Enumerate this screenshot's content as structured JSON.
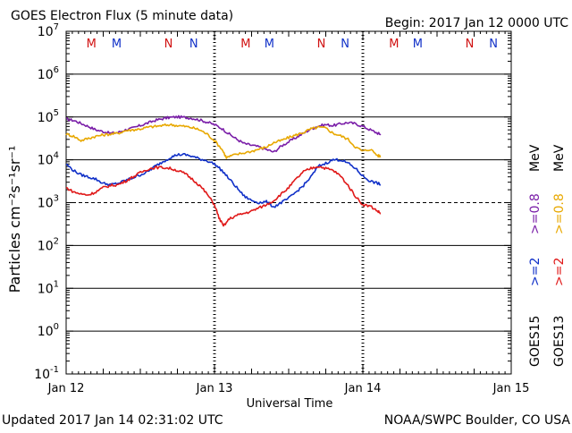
{
  "chart_data": {
    "type": "line",
    "title": "GOES Electron Flux (5 minute data)",
    "begin_label": "Begin: 2017 Jan 12 0000 UTC",
    "xlabel": "Universal Time",
    "ylabel": "Particles cm⁻²s⁻¹sr⁻¹",
    "x_unit": "days since 2017 Jan 12 0000 UTC",
    "xlim": [
      0,
      3
    ],
    "ylim_log10": [
      -1,
      7
    ],
    "y_scale": "log",
    "y_ticks": [
      {
        "base": "10",
        "exp": "-1",
        "value": -1
      },
      {
        "base": "10",
        "exp": "0",
        "value": 0
      },
      {
        "base": "10",
        "exp": "1",
        "value": 1
      },
      {
        "base": "10",
        "exp": "2",
        "value": 2
      },
      {
        "base": "10",
        "exp": "3",
        "value": 3
      },
      {
        "base": "10",
        "exp": "4",
        "value": 4
      },
      {
        "base": "10",
        "exp": "5",
        "value": 5
      },
      {
        "base": "10",
        "exp": "6",
        "value": 6
      },
      {
        "base": "10",
        "exp": "7",
        "value": 7
      }
    ],
    "x_ticks": [
      {
        "label": "Jan 12",
        "value": 0
      },
      {
        "label": "Jan 13",
        "value": 1
      },
      {
        "label": "Jan 14",
        "value": 2
      },
      {
        "label": "Jan 15",
        "value": 3
      }
    ],
    "solid_gridlines_log10": [
      0,
      1,
      2,
      4,
      5,
      6
    ],
    "threshold_log10": 3,
    "day_boundaries": [
      1,
      2
    ],
    "magnetopause_markers": [
      {
        "letter": "M",
        "day": 0.17,
        "color": "#d01010"
      },
      {
        "letter": "M",
        "day": 0.34,
        "color": "#1030c8"
      },
      {
        "letter": "N",
        "day": 0.69,
        "color": "#d01010"
      },
      {
        "letter": "N",
        "day": 0.86,
        "color": "#1030c8"
      },
      {
        "letter": "M",
        "day": 1.21,
        "color": "#d01010"
      },
      {
        "letter": "M",
        "day": 1.37,
        "color": "#1030c8"
      },
      {
        "letter": "N",
        "day": 1.72,
        "color": "#d01010"
      },
      {
        "letter": "N",
        "day": 1.88,
        "color": "#1030c8"
      },
      {
        "letter": "M",
        "day": 2.21,
        "color": "#d01010"
      },
      {
        "letter": "M",
        "day": 2.37,
        "color": "#1030c8"
      },
      {
        "letter": "N",
        "day": 2.72,
        "color": "#d01010"
      },
      {
        "letter": "N",
        "day": 2.88,
        "color": "#1030c8"
      }
    ],
    "legend": {
      "goes15_label": "GOES15",
      "goes13_label": "GOES13",
      "ge2_label": ">=2",
      "ge08_label": ">=0.8",
      "mev_label": "MeV"
    },
    "series": [
      {
        "name": "GOES15 >=0.8 MeV",
        "color": "#7a1ea8",
        "points_day_log10": [
          [
            0.0,
            4.95
          ],
          [
            0.05,
            4.92
          ],
          [
            0.1,
            4.85
          ],
          [
            0.15,
            4.78
          ],
          [
            0.2,
            4.7
          ],
          [
            0.25,
            4.66
          ],
          [
            0.3,
            4.62
          ],
          [
            0.35,
            4.64
          ],
          [
            0.4,
            4.7
          ],
          [
            0.45,
            4.74
          ],
          [
            0.5,
            4.8
          ],
          [
            0.55,
            4.86
          ],
          [
            0.6,
            4.92
          ],
          [
            0.65,
            4.96
          ],
          [
            0.7,
            4.99
          ],
          [
            0.75,
            5.0
          ],
          [
            0.8,
            4.99
          ],
          [
            0.85,
            4.97
          ],
          [
            0.9,
            4.93
          ],
          [
            0.95,
            4.88
          ],
          [
            1.0,
            4.82
          ],
          [
            1.05,
            4.73
          ],
          [
            1.1,
            4.6
          ],
          [
            1.15,
            4.48
          ],
          [
            1.2,
            4.38
          ],
          [
            1.25,
            4.34
          ],
          [
            1.3,
            4.3
          ],
          [
            1.35,
            4.24
          ],
          [
            1.4,
            4.18
          ],
          [
            1.45,
            4.32
          ],
          [
            1.5,
            4.42
          ],
          [
            1.55,
            4.52
          ],
          [
            1.6,
            4.62
          ],
          [
            1.65,
            4.72
          ],
          [
            1.7,
            4.79
          ],
          [
            1.75,
            4.82
          ],
          [
            1.8,
            4.8
          ],
          [
            1.85,
            4.84
          ],
          [
            1.9,
            4.87
          ],
          [
            1.95,
            4.84
          ],
          [
            2.0,
            4.78
          ],
          [
            2.05,
            4.7
          ],
          [
            2.1,
            4.62
          ],
          [
            2.12,
            4.6
          ]
        ]
      },
      {
        "name": "GOES13 >=0.8 MeV",
        "color": "#e8a800",
        "points_day_log10": [
          [
            0.0,
            4.6
          ],
          [
            0.05,
            4.55
          ],
          [
            0.1,
            4.45
          ],
          [
            0.15,
            4.5
          ],
          [
            0.2,
            4.55
          ],
          [
            0.25,
            4.58
          ],
          [
            0.3,
            4.6
          ],
          [
            0.35,
            4.62
          ],
          [
            0.4,
            4.68
          ],
          [
            0.45,
            4.7
          ],
          [
            0.5,
            4.72
          ],
          [
            0.55,
            4.76
          ],
          [
            0.6,
            4.78
          ],
          [
            0.65,
            4.8
          ],
          [
            0.7,
            4.82
          ],
          [
            0.75,
            4.8
          ],
          [
            0.8,
            4.78
          ],
          [
            0.85,
            4.75
          ],
          [
            0.9,
            4.7
          ],
          [
            0.95,
            4.6
          ],
          [
            1.0,
            4.45
          ],
          [
            1.05,
            4.25
          ],
          [
            1.08,
            4.05
          ],
          [
            1.12,
            4.1
          ],
          [
            1.18,
            4.15
          ],
          [
            1.25,
            4.2
          ],
          [
            1.3,
            4.25
          ],
          [
            1.35,
            4.3
          ],
          [
            1.4,
            4.4
          ],
          [
            1.45,
            4.45
          ],
          [
            1.5,
            4.52
          ],
          [
            1.55,
            4.58
          ],
          [
            1.6,
            4.64
          ],
          [
            1.65,
            4.72
          ],
          [
            1.7,
            4.76
          ],
          [
            1.75,
            4.74
          ],
          [
            1.8,
            4.62
          ],
          [
            1.85,
            4.56
          ],
          [
            1.9,
            4.48
          ],
          [
            1.95,
            4.3
          ],
          [
            2.0,
            4.2
          ],
          [
            2.05,
            4.25
          ],
          [
            2.1,
            4.1
          ],
          [
            2.12,
            4.08
          ]
        ]
      },
      {
        "name": "GOES15 >=2 MeV",
        "color": "#1030c8",
        "points_day_log10": [
          [
            0.0,
            3.9
          ],
          [
            0.05,
            3.75
          ],
          [
            0.1,
            3.65
          ],
          [
            0.15,
            3.6
          ],
          [
            0.2,
            3.55
          ],
          [
            0.25,
            3.45
          ],
          [
            0.3,
            3.42
          ],
          [
            0.35,
            3.45
          ],
          [
            0.4,
            3.52
          ],
          [
            0.45,
            3.58
          ],
          [
            0.5,
            3.65
          ],
          [
            0.55,
            3.72
          ],
          [
            0.6,
            3.85
          ],
          [
            0.65,
            3.95
          ],
          [
            0.7,
            4.05
          ],
          [
            0.75,
            4.12
          ],
          [
            0.8,
            4.12
          ],
          [
            0.85,
            4.08
          ],
          [
            0.9,
            4.02
          ],
          [
            0.95,
            3.98
          ],
          [
            1.0,
            3.9
          ],
          [
            1.05,
            3.75
          ],
          [
            1.1,
            3.55
          ],
          [
            1.15,
            3.35
          ],
          [
            1.2,
            3.15
          ],
          [
            1.25,
            3.05
          ],
          [
            1.3,
            3.0
          ],
          [
            1.35,
            3.02
          ],
          [
            1.4,
            2.9
          ],
          [
            1.45,
            3.0
          ],
          [
            1.5,
            3.1
          ],
          [
            1.55,
            3.25
          ],
          [
            1.6,
            3.4
          ],
          [
            1.65,
            3.6
          ],
          [
            1.7,
            3.85
          ],
          [
            1.75,
            3.92
          ],
          [
            1.8,
            4.0
          ],
          [
            1.85,
            4.0
          ],
          [
            1.9,
            3.92
          ],
          [
            1.95,
            3.8
          ],
          [
            2.0,
            3.62
          ],
          [
            2.05,
            3.5
          ],
          [
            2.1,
            3.45
          ],
          [
            2.12,
            3.42
          ]
        ]
      },
      {
        "name": "GOES13 >=2 MeV",
        "color": "#e01818",
        "points_day_log10": [
          [
            0.0,
            3.35
          ],
          [
            0.05,
            3.25
          ],
          [
            0.1,
            3.2
          ],
          [
            0.15,
            3.18
          ],
          [
            0.2,
            3.25
          ],
          [
            0.25,
            3.35
          ],
          [
            0.3,
            3.4
          ],
          [
            0.35,
            3.42
          ],
          [
            0.4,
            3.5
          ],
          [
            0.45,
            3.6
          ],
          [
            0.5,
            3.7
          ],
          [
            0.55,
            3.78
          ],
          [
            0.6,
            3.82
          ],
          [
            0.65,
            3.82
          ],
          [
            0.7,
            3.8
          ],
          [
            0.75,
            3.75
          ],
          [
            0.8,
            3.68
          ],
          [
            0.85,
            3.55
          ],
          [
            0.9,
            3.4
          ],
          [
            0.95,
            3.2
          ],
          [
            1.0,
            2.95
          ],
          [
            1.03,
            2.65
          ],
          [
            1.06,
            2.45
          ],
          [
            1.1,
            2.62
          ],
          [
            1.15,
            2.7
          ],
          [
            1.2,
            2.75
          ],
          [
            1.25,
            2.8
          ],
          [
            1.3,
            2.88
          ],
          [
            1.35,
            2.95
          ],
          [
            1.4,
            3.05
          ],
          [
            1.45,
            3.2
          ],
          [
            1.5,
            3.35
          ],
          [
            1.55,
            3.55
          ],
          [
            1.6,
            3.72
          ],
          [
            1.65,
            3.8
          ],
          [
            1.7,
            3.85
          ],
          [
            1.75,
            3.8
          ],
          [
            1.8,
            3.75
          ],
          [
            1.85,
            3.62
          ],
          [
            1.9,
            3.4
          ],
          [
            1.95,
            3.15
          ],
          [
            2.0,
            2.95
          ],
          [
            2.05,
            2.92
          ],
          [
            2.1,
            2.8
          ],
          [
            2.12,
            2.75
          ]
        ]
      }
    ]
  },
  "footer": {
    "updated": "Updated 2017 Jan 14 02:31:02 UTC",
    "credit": "NOAA/SWPC Boulder, CO USA"
  }
}
